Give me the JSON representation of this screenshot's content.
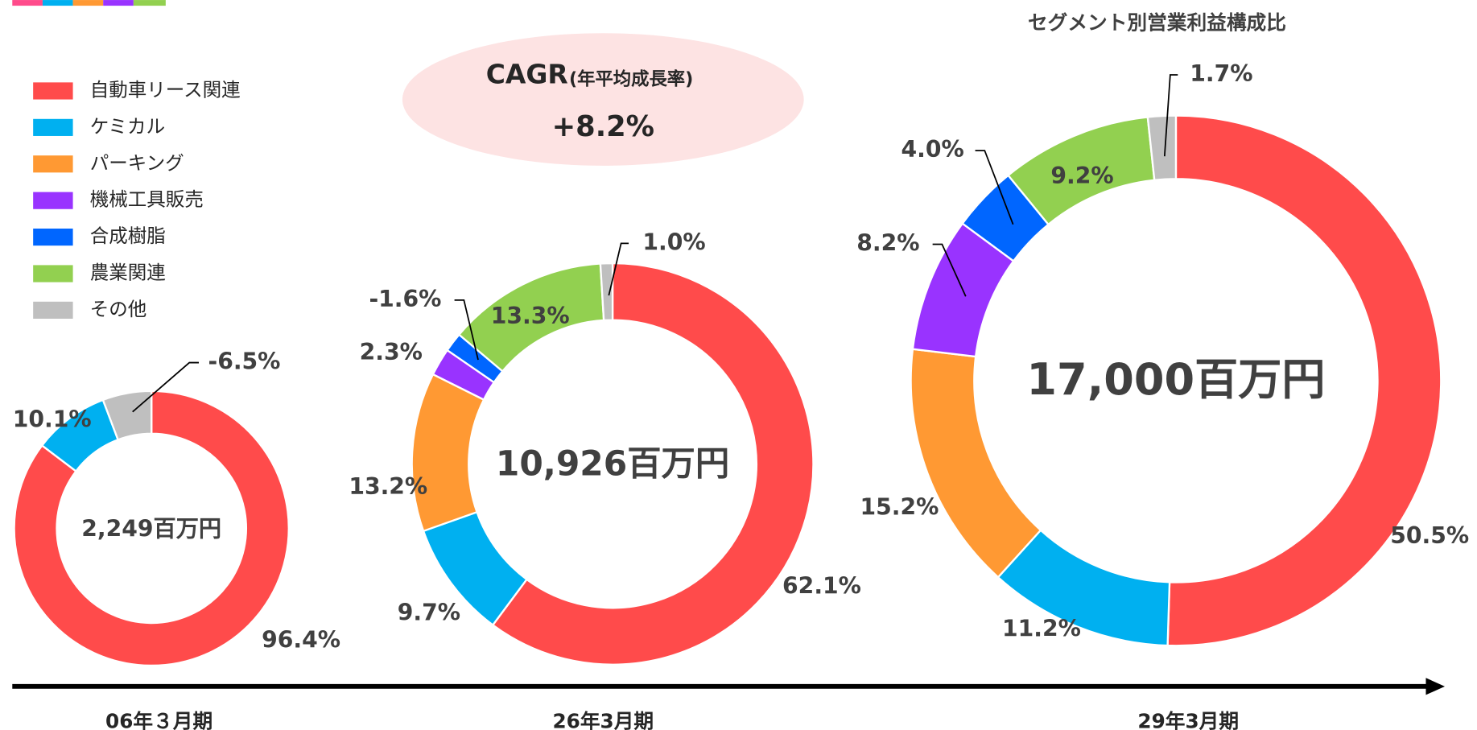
{
  "title": "セグメント別営業利益構成比",
  "cagr": {
    "label": "CAGR",
    "sublabel": "(年平均成長率)",
    "value": "+8.2%"
  },
  "legend": [
    {
      "name": "自動車リース関連",
      "color": "#ff4b4b"
    },
    {
      "name": "ケミカル",
      "color": "#00b0f0"
    },
    {
      "name": "パーキング",
      "color": "#ff9933"
    },
    {
      "name": "機械工具販売",
      "color": "#9933ff"
    },
    {
      "name": "合成樹脂",
      "color": "#0066ff"
    },
    {
      "name": "農業関連",
      "color": "#92d050"
    },
    {
      "name": "その他",
      "color": "#bfbfbf"
    }
  ],
  "chart_data": [
    {
      "type": "donut",
      "period": "06年３月期",
      "center_label": "2,249百万円",
      "values": [
        96.4,
        10.1,
        null,
        null,
        null,
        null,
        -6.5
      ],
      "value_labels": [
        "96.4%",
        "10.1%",
        null,
        null,
        null,
        null,
        "-6.5%"
      ]
    },
    {
      "type": "donut",
      "period": "26年3月期",
      "center_label": "10,926百万円",
      "values": [
        62.1,
        9.7,
        13.2,
        2.3,
        -1.6,
        13.3,
        1.0
      ],
      "value_labels": [
        "62.1%",
        "9.7%",
        "13.2%",
        "2.3%",
        "-1.6%",
        "13.3%",
        "1.0%"
      ]
    },
    {
      "type": "donut",
      "period": "29年3月期",
      "center_label": "17,000百万円",
      "values": [
        50.5,
        11.2,
        15.2,
        8.2,
        4.0,
        9.2,
        1.7
      ],
      "value_labels": [
        "50.5%",
        "11.2%",
        "15.2%",
        "8.2%",
        "4.0%",
        "9.2%",
        "1.7%"
      ]
    }
  ]
}
